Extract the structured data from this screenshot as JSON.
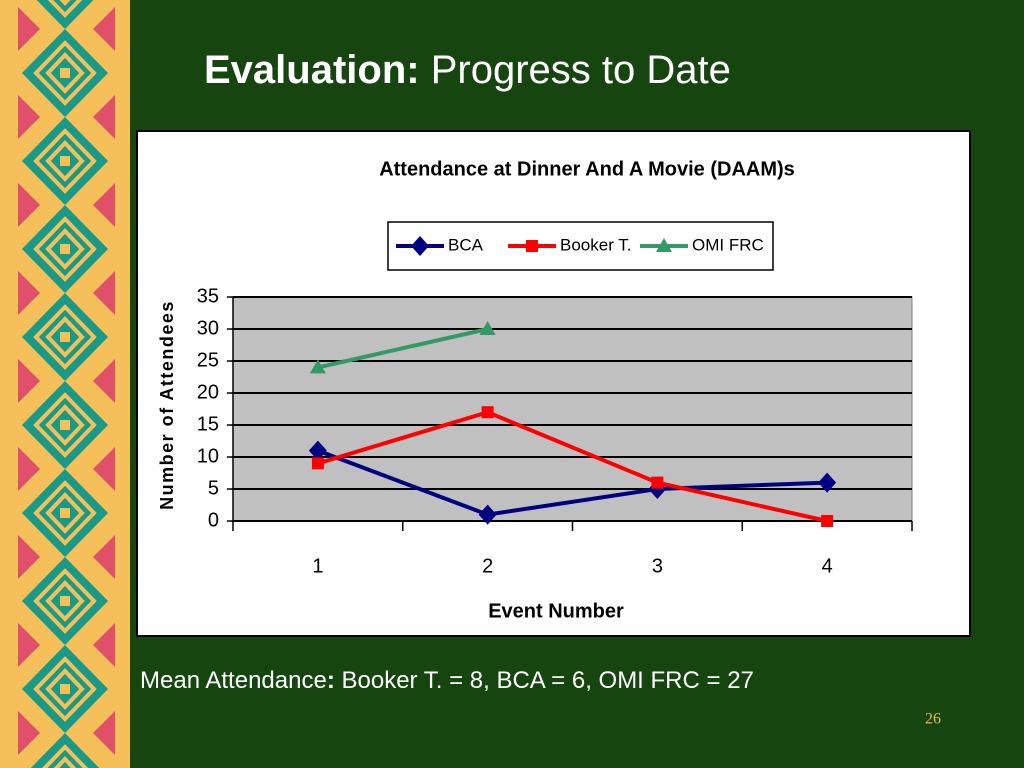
{
  "slide": {
    "title_bold": "Evaluation:",
    "title_rest": "Progress to Date",
    "note_label": "Mean Attendance",
    "note_colon": ":",
    "note_text": "Booker T. = 8, BCA = 6, OMI FRC = 27",
    "page_number": "26"
  },
  "chart_data": {
    "type": "line",
    "title": "Attendance at Dinner And A Movie (DAAM)s",
    "x_label": "Event Number",
    "y_label": "Number of Attendees",
    "categories": [
      "1",
      "2",
      "3",
      "4"
    ],
    "series": [
      {
        "name": "BCA",
        "color": "#000080",
        "marker": "diamond",
        "values": [
          11,
          1,
          5,
          6
        ]
      },
      {
        "name": "Booker T.",
        "color": "#ff0000",
        "marker": "square",
        "values": [
          9,
          17,
          6,
          0
        ]
      },
      {
        "name": "OMI FRC",
        "color": "#339966",
        "marker": "triangle",
        "values": [
          24,
          30,
          null,
          null
        ]
      }
    ],
    "ylim": [
      0,
      35
    ],
    "yticks": [
      0,
      5,
      10,
      15,
      20,
      25,
      30,
      35
    ],
    "grid": true,
    "legend": "top"
  }
}
